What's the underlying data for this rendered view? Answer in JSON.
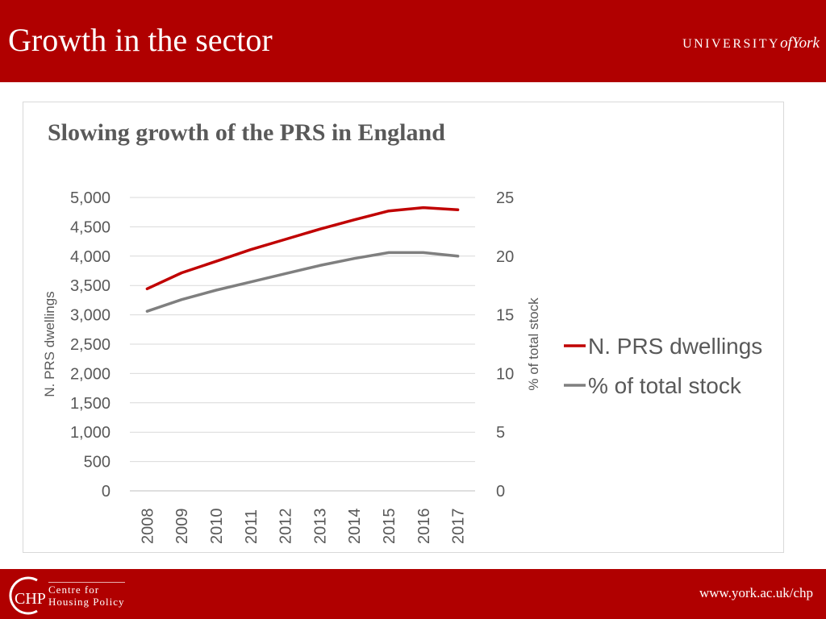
{
  "slide": {
    "title": "Growth in the sector"
  },
  "header": {
    "logo_main": "UNIVERSITY",
    "logo_of": "of",
    "logo_york": "York"
  },
  "chart_data": {
    "type": "line",
    "title": "Slowing growth of the PRS in England",
    "categories": [
      "2008",
      "2009",
      "2010",
      "2011",
      "2012",
      "2013",
      "2014",
      "2015",
      "2016",
      "2017"
    ],
    "series": [
      {
        "name": "N. PRS dwellings",
        "axis": "left",
        "color": "#c00000",
        "values": [
          3443,
          3715,
          3912,
          4111,
          4286,
          4460,
          4620,
          4770,
          4827,
          4790
        ]
      },
      {
        "name": "% of total stock",
        "axis": "right",
        "color": "#7f7f7f",
        "values": [
          15.3,
          16.3,
          17.1,
          17.8,
          18.5,
          19.2,
          19.8,
          20.3,
          20.3,
          20.0
        ]
      }
    ],
    "ylabel": "N. PRS dwellings",
    "y2label": "% of total stock",
    "ylim": [
      0,
      5000
    ],
    "y2lim": [
      0,
      25
    ],
    "yticks": [
      "0",
      "500",
      "1,000",
      "1,500",
      "2,000",
      "2,500",
      "3,000",
      "3,500",
      "4,000",
      "4,500",
      "5,000"
    ],
    "y2ticks": [
      "0",
      "5",
      "10",
      "15",
      "20",
      "25"
    ],
    "grid": true,
    "legend_position": "right"
  },
  "footer": {
    "logo_initials": "CHP",
    "logo_line1": "Centre for",
    "logo_line2": "Housing Policy",
    "url": "www.york.ac.uk/chp"
  }
}
